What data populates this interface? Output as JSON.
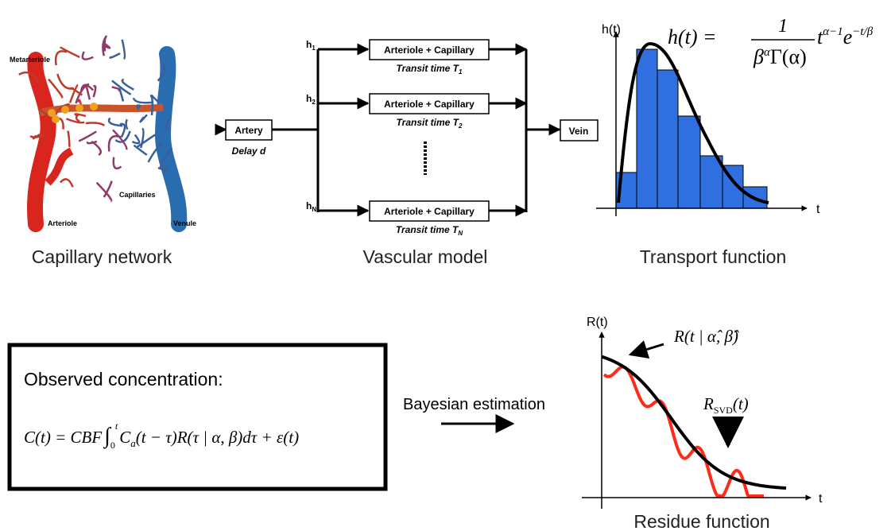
{
  "capillary_network": {
    "labels": {
      "metarteriole": "Metarteriole",
      "capillaries": "Capillaries",
      "arteriole": "Arteriole",
      "venule": "Venule"
    },
    "caption": "Capillary network"
  },
  "vascular_model": {
    "artery": "Artery",
    "delay": "Delay d",
    "vein": "Vein",
    "branches": [
      {
        "weight": {
          "base": "h",
          "sub": "1"
        },
        "box": "Arteriole + Capillary",
        "transit": {
          "base": "Transit time T",
          "sub": "1"
        }
      },
      {
        "weight": {
          "base": "h",
          "sub": "2"
        },
        "box": "Arteriole + Capillary",
        "transit": {
          "base": "Transit time T",
          "sub": "2"
        }
      },
      {
        "weight": {
          "base": "h",
          "sub": "N"
        },
        "box": "Arteriole + Capillary",
        "transit": {
          "base": "Transit time T",
          "sub": "N"
        }
      }
    ],
    "caption": "Vascular model"
  },
  "transport_function": {
    "y_axis": "h(t)",
    "x_axis": "t",
    "formula": {
      "lhs": "h(t) =",
      "numerator": "1",
      "denominator_base": "β",
      "denominator_sup": "α",
      "denominator_rest": "Γ(α)",
      "t": "t",
      "t_sup": "α−1",
      "e": "e",
      "e_sup": "−t/β"
    },
    "caption": "Transport function"
  },
  "observation": {
    "heading": "Observed concentration:",
    "formula": {
      "lhs": "C(t) = CBF",
      "integral": "∫",
      "lower": "0",
      "upper": "t",
      "c": "C",
      "c_sub": "a",
      "rest": "(t − τ)R(τ | α, β)dτ + ε(t)"
    }
  },
  "estimation": "Bayesian estimation",
  "residue_function": {
    "y_axis": "R(t)",
    "x_axis": "t",
    "fit_label": "R(t | α̂, β̂)",
    "svd_label": {
      "base": "R",
      "sub": "SVD",
      "rest": "(t)"
    },
    "caption": "Residue function"
  }
}
